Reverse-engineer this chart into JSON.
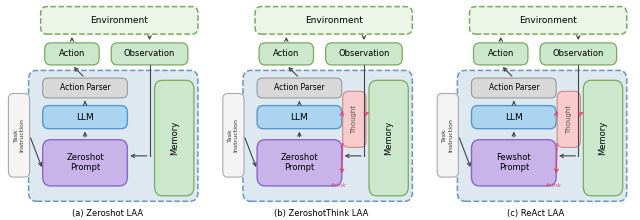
{
  "panels": [
    {
      "label": "(a) Zeroshot LAA",
      "prompt_text": "Zeroshot\nPrompt",
      "has_thought": false
    },
    {
      "label": "(b) ZeroshotThink LAA",
      "prompt_text": "Zeroshot\nPrompt",
      "has_thought": true
    },
    {
      "label": "(c) ReAct LAA",
      "prompt_text": "Fewshot\nPrompt",
      "has_thought": true
    }
  ],
  "colors": {
    "environment_fill": "#edf4e8",
    "environment_edge": "#7aaa60",
    "action_obs_fill": "#cce8cc",
    "action_obs_edge": "#7aaa60",
    "outer_box_fill": "#dde8f0",
    "outer_box_edge": "#6699bb",
    "action_parser_fill": "#d8d8d8",
    "action_parser_edge": "#999999",
    "llm_fill": "#aad4f0",
    "llm_edge": "#5599cc",
    "prompt_fill": "#c8b4e8",
    "prompt_edge": "#8866cc",
    "memory_fill": "#cce8cc",
    "memory_edge": "#7aaa60",
    "thought_fill": "#f8cccc",
    "thought_edge": "#cc8888",
    "task_fill": "#f4f4f4",
    "task_edge": "#aaaaaa",
    "arrow_color": "#444444",
    "pink_arrow": "#dd4477"
  }
}
